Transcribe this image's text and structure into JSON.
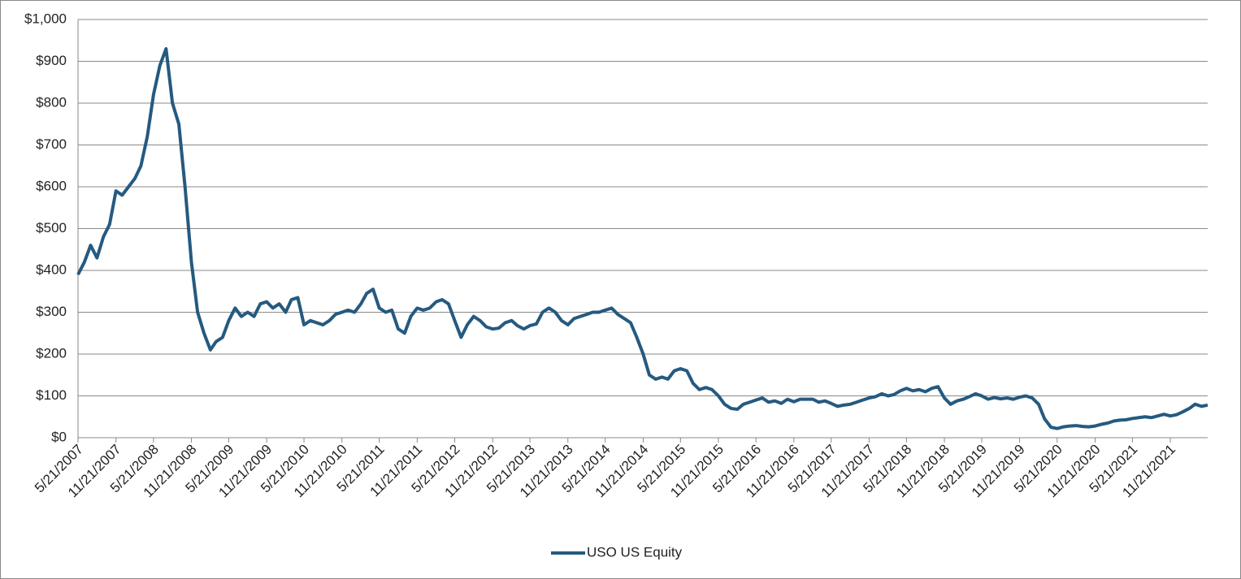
{
  "chart_data": {
    "type": "line",
    "x": [
      "5/21/2007",
      "6/21/2007",
      "7/21/2007",
      "8/21/2007",
      "9/21/2007",
      "10/21/2007",
      "11/21/2007",
      "12/21/2007",
      "1/21/2008",
      "2/21/2008",
      "3/21/2008",
      "4/21/2008",
      "5/21/2008",
      "6/21/2008",
      "7/21/2008",
      "8/21/2008",
      "9/21/2008",
      "10/21/2008",
      "11/21/2008",
      "12/21/2008",
      "1/21/2009",
      "2/21/2009",
      "3/21/2009",
      "4/21/2009",
      "5/21/2009",
      "6/21/2009",
      "7/21/2009",
      "8/21/2009",
      "9/21/2009",
      "10/21/2009",
      "11/21/2009",
      "12/21/2009",
      "1/21/2010",
      "2/21/2010",
      "3/21/2010",
      "4/21/2010",
      "5/21/2010",
      "6/21/2010",
      "7/21/2010",
      "8/21/2010",
      "9/21/2010",
      "10/21/2010",
      "11/21/2010",
      "12/21/2010",
      "1/21/2011",
      "2/21/2011",
      "3/21/2011",
      "4/21/2011",
      "5/21/2011",
      "6/21/2011",
      "7/21/2011",
      "8/21/2011",
      "9/21/2011",
      "10/21/2011",
      "11/21/2011",
      "12/21/2011",
      "1/21/2012",
      "2/21/2012",
      "3/21/2012",
      "4/21/2012",
      "5/21/2012",
      "6/21/2012",
      "7/21/2012",
      "8/21/2012",
      "9/21/2012",
      "10/21/2012",
      "11/21/2012",
      "12/21/2012",
      "1/21/2013",
      "2/21/2013",
      "3/21/2013",
      "4/21/2013",
      "5/21/2013",
      "6/21/2013",
      "7/21/2013",
      "8/21/2013",
      "9/21/2013",
      "10/21/2013",
      "11/21/2013",
      "12/21/2013",
      "1/21/2014",
      "2/21/2014",
      "3/21/2014",
      "4/21/2014",
      "5/21/2014",
      "6/21/2014",
      "7/21/2014",
      "8/21/2014",
      "9/21/2014",
      "10/21/2014",
      "11/21/2014",
      "12/21/2014",
      "1/21/2015",
      "2/21/2015",
      "3/21/2015",
      "4/21/2015",
      "5/21/2015",
      "6/21/2015",
      "7/21/2015",
      "8/21/2015",
      "9/21/2015",
      "10/21/2015",
      "11/21/2015",
      "12/21/2015",
      "1/21/2016",
      "2/21/2016",
      "3/21/2016",
      "4/21/2016",
      "5/21/2016",
      "6/21/2016",
      "7/21/2016",
      "8/21/2016",
      "9/21/2016",
      "10/21/2016",
      "11/21/2016",
      "12/21/2016",
      "1/21/2017",
      "2/21/2017",
      "3/21/2017",
      "4/21/2017",
      "5/21/2017",
      "6/21/2017",
      "7/21/2017",
      "8/21/2017",
      "9/21/2017",
      "10/21/2017",
      "11/21/2017",
      "12/21/2017",
      "1/21/2018",
      "2/21/2018",
      "3/21/2018",
      "4/21/2018",
      "5/21/2018",
      "6/21/2018",
      "7/21/2018",
      "8/21/2018",
      "9/21/2018",
      "10/21/2018",
      "11/21/2018",
      "12/21/2018",
      "1/21/2019",
      "2/21/2019",
      "3/21/2019",
      "4/21/2019",
      "5/21/2019",
      "6/21/2019",
      "7/21/2019",
      "8/21/2019",
      "9/21/2019",
      "10/21/2019",
      "11/21/2019",
      "12/21/2019",
      "1/21/2020",
      "2/21/2020",
      "3/21/2020",
      "4/21/2020",
      "5/21/2020",
      "6/21/2020",
      "7/21/2020",
      "8/21/2020",
      "9/21/2020",
      "10/21/2020",
      "11/21/2020",
      "12/21/2020",
      "1/21/2021",
      "2/21/2021",
      "3/21/2021",
      "4/21/2021",
      "5/21/2021",
      "6/21/2021",
      "7/21/2021",
      "8/21/2021",
      "9/21/2021",
      "10/21/2021",
      "11/21/2021",
      "12/21/2021",
      "1/21/2022",
      "2/21/2022",
      "3/21/2022",
      "4/21/2022",
      "5/21/2022"
    ],
    "series": [
      {
        "name": "USO US Equity",
        "color": "#255a80",
        "values": [
          390,
          420,
          460,
          430,
          480,
          510,
          590,
          580,
          600,
          620,
          650,
          720,
          820,
          890,
          930,
          800,
          750,
          600,
          420,
          300,
          250,
          210,
          230,
          240,
          280,
          310,
          290,
          300,
          290,
          320,
          325,
          310,
          320,
          300,
          330,
          335,
          270,
          280,
          275,
          270,
          280,
          295,
          300,
          305,
          300,
          320,
          345,
          355,
          310,
          300,
          305,
          260,
          250,
          290,
          310,
          305,
          310,
          325,
          330,
          320,
          280,
          240,
          270,
          290,
          280,
          265,
          260,
          262,
          275,
          280,
          268,
          260,
          268,
          272,
          300,
          310,
          300,
          280,
          270,
          285,
          290,
          295,
          300,
          300,
          305,
          310,
          295,
          285,
          275,
          240,
          200,
          150,
          140,
          145,
          140,
          160,
          165,
          160,
          130,
          115,
          120,
          115,
          100,
          80,
          70,
          68,
          80,
          85,
          90,
          95,
          85,
          88,
          82,
          92,
          86,
          92,
          92,
          92,
          85,
          88,
          82,
          75,
          78,
          80,
          85,
          90,
          95,
          98,
          105,
          100,
          103,
          112,
          118,
          112,
          115,
          110,
          118,
          122,
          95,
          80,
          88,
          92,
          98,
          105,
          100,
          92,
          96,
          93,
          95,
          92,
          97,
          100,
          95,
          80,
          45,
          25,
          22,
          26,
          28,
          29,
          27,
          26,
          28,
          32,
          35,
          40,
          42,
          43,
          46,
          48,
          50,
          48,
          52,
          56,
          52,
          55,
          62,
          70,
          80,
          75,
          78
        ]
      }
    ],
    "xlim": [
      "5/21/2007",
      "5/21/2022"
    ],
    "xticks": [
      "5/21/2007",
      "11/21/2007",
      "5/21/2008",
      "11/21/2008",
      "5/21/2009",
      "11/21/2009",
      "5/21/2010",
      "11/21/2010",
      "5/21/2011",
      "11/21/2011",
      "5/21/2012",
      "11/21/2012",
      "5/21/2013",
      "11/21/2013",
      "5/21/2014",
      "11/21/2014",
      "5/21/2015",
      "11/21/2015",
      "5/21/2016",
      "11/21/2016",
      "5/21/2017",
      "11/21/2017",
      "5/21/2018",
      "11/21/2018",
      "5/21/2019",
      "11/21/2019",
      "5/21/2020",
      "11/21/2020",
      "5/21/2021",
      "11/21/2021"
    ],
    "ylim": [
      0,
      1000
    ],
    "yticks": [
      {
        "value": 0,
        "label": "$0"
      },
      {
        "value": 100,
        "label": "$100"
      },
      {
        "value": 200,
        "label": "$200"
      },
      {
        "value": 300,
        "label": "$300"
      },
      {
        "value": 400,
        "label": "$400"
      },
      {
        "value": 500,
        "label": "$500"
      },
      {
        "value": 600,
        "label": "$600"
      },
      {
        "value": 700,
        "label": "$700"
      },
      {
        "value": 800,
        "label": "$800"
      },
      {
        "value": 900,
        "label": "$900"
      },
      {
        "value": 1000,
        "label": "$1,000"
      }
    ],
    "grid": true,
    "legend": "bottom"
  }
}
